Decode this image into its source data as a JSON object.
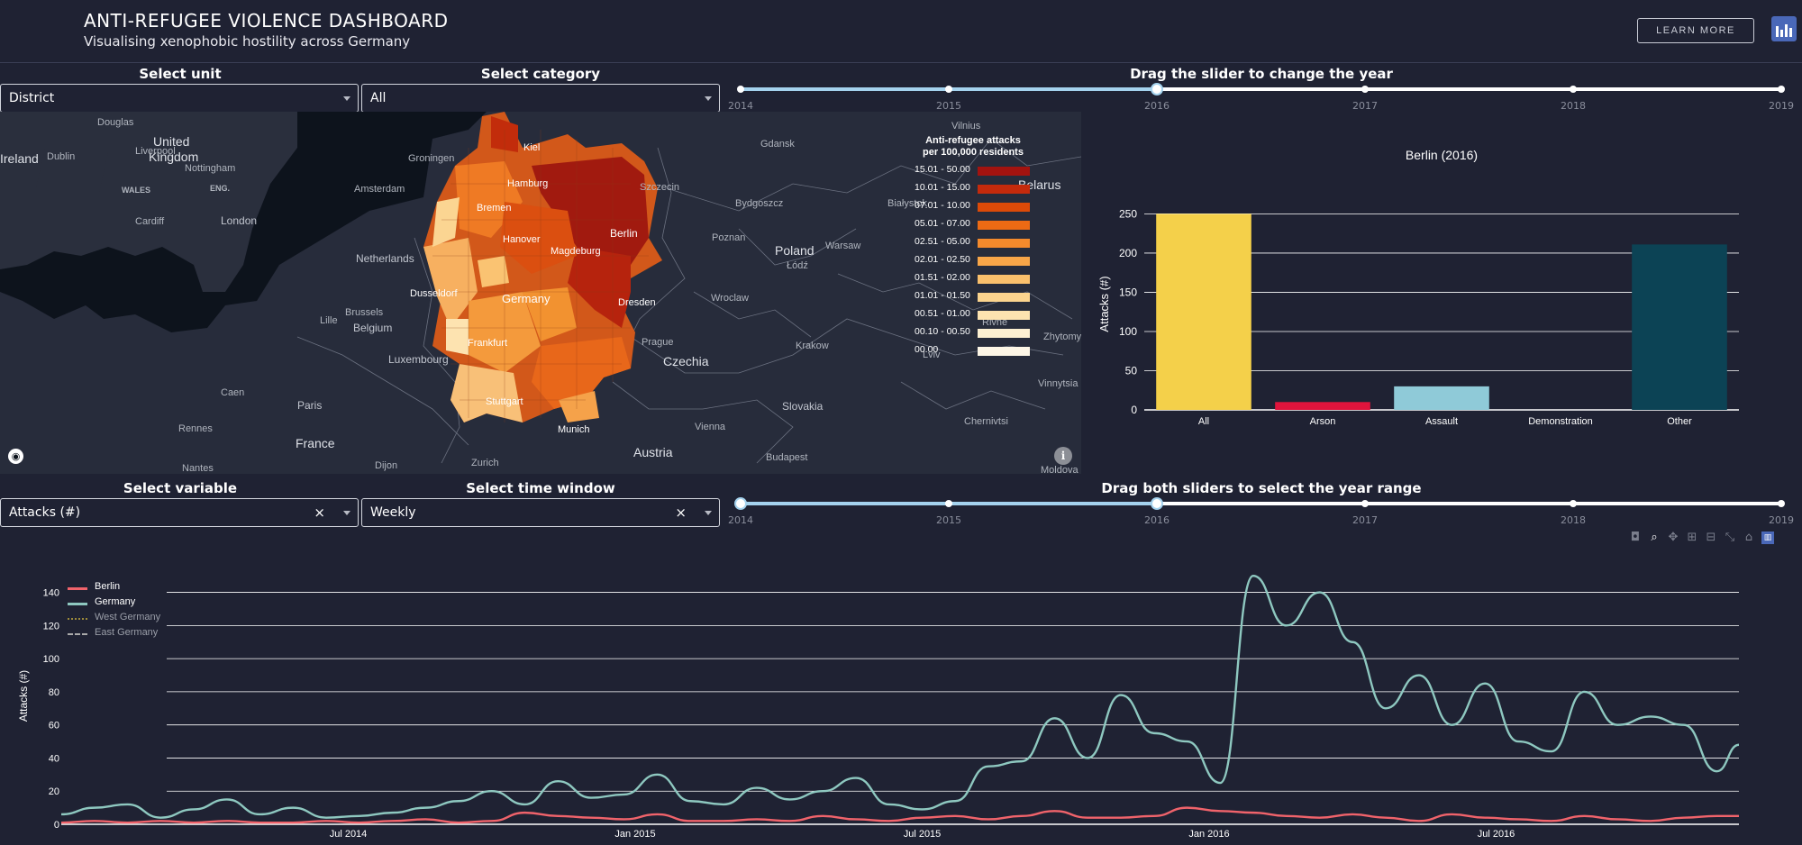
{
  "header": {
    "title": "ANTI-REFUGEE VIOLENCE DASHBOARD",
    "subtitle": "Visualising xenophobic hostility across Germany",
    "learn_more": "LEARN MORE",
    "brand_icon": "bar-chart-logo-icon"
  },
  "controls": {
    "unit_label": "Select unit",
    "unit_value": "District",
    "category_label": "Select category",
    "category_value": "All",
    "year_slider_label": "Drag the slider to change the year",
    "year_slider_ticks": [
      "2014",
      "2015",
      "2016",
      "2017",
      "2018",
      "2019"
    ],
    "year_slider_value": "2016",
    "variable_label": "Select variable",
    "variable_value": "Attacks (#)",
    "window_label": "Select time window",
    "window_value": "Weekly",
    "range_slider_label": "Drag both sliders to select the year range",
    "range_slider_ticks": [
      "2014",
      "2015",
      "2016",
      "2017",
      "2018",
      "2019"
    ],
    "range_slider_value": [
      "2014",
      "2016"
    ],
    "clear_symbol": "×"
  },
  "map": {
    "legend_title_1": "Anti-refugee attacks",
    "legend_title_2": "per 100,000 residents",
    "legend": [
      {
        "label": "15.01 - 50.00",
        "color": "#a3130f"
      },
      {
        "label": "10.01 - 15.00",
        "color": "#c42a0c"
      },
      {
        "label": "07.01 - 10.00",
        "color": "#dc4a08"
      },
      {
        "label": "05.01 - 07.00",
        "color": "#ec6a14"
      },
      {
        "label": "02.51 - 05.00",
        "color": "#f48a2c"
      },
      {
        "label": "02.01 - 02.50",
        "color": "#f8a648"
      },
      {
        "label": "01.51 - 02.00",
        "color": "#fac06c"
      },
      {
        "label": "01.01 - 01.50",
        "color": "#fbd48e"
      },
      {
        "label": "00.51 - 01.00",
        "color": "#fde3b0"
      },
      {
        "label": "00.10 - 00.50",
        "color": "#fdf0d2"
      },
      {
        "label": "00.00",
        "color": "#fdf6e6"
      }
    ],
    "places": {
      "country_large": [
        "United",
        "Kingdom",
        "Ireland",
        "Netherlands",
        "Belgium",
        "Germany",
        "Poland",
        "Czechia",
        "France",
        "Austria",
        "Slovakia",
        "Luxembourg",
        "Belarus"
      ],
      "cities": [
        "Dublin",
        "Douglas",
        "Liverpool",
        "Nottingham",
        "WALES",
        "ENG.",
        "Cardiff",
        "London",
        "Amsterdam",
        "Groningen",
        "Brussels",
        "Lille",
        "Paris",
        "Caen",
        "Rennes",
        "Nantes",
        "Dijon",
        "Zurich",
        "Kiel",
        "Hamburg",
        "Bremen",
        "Hanover",
        "Magdeburg",
        "Berlin",
        "Dresden",
        "Dusseldorf",
        "Frankfurt",
        "Stuttgart",
        "Munich",
        "Prague",
        "Vienna",
        "Budapest",
        "Krakow",
        "Wroclaw",
        "Łódź",
        "Warsaw",
        "Poznan",
        "Bydgoszcz",
        "Gdansk",
        "Szczecin",
        "Białystok",
        "Vilnius",
        "Lviv",
        "Rivne",
        "Zhytomyr",
        "Vinnytsia",
        "Chernivtsi",
        "Moldova"
      ]
    },
    "attribution_icon": "mapbox-logo-icon",
    "info_icon": "info-icon"
  },
  "bar_chart": {
    "title": "Berlin (2016)",
    "ylabel": "Attacks (#)",
    "chart_data": {
      "type": "bar",
      "title": "Berlin (2016)",
      "xlabel": "",
      "ylabel": "Attacks (#)",
      "categories": [
        "All",
        "Arson",
        "Assault",
        "Demonstration",
        "Other"
      ],
      "values": [
        250,
        10,
        30,
        0,
        211
      ],
      "colors": [
        "#f4d04a",
        "#e0143c",
        "#8fcad8",
        "#1f2233",
        "#0c4355"
      ],
      "ylim": [
        0,
        270
      ],
      "yticks": [
        0,
        50,
        100,
        150,
        200,
        250
      ],
      "grid": true
    }
  },
  "line_chart": {
    "ylabel": "Attacks (#)",
    "legend": [
      {
        "name": "Berlin",
        "color": "#f0636b",
        "style": "solid"
      },
      {
        "name": "Germany",
        "color": "#8ec8c0",
        "style": "solid"
      },
      {
        "name": "West Germany",
        "color": "#9c8a3a",
        "style": "dotted"
      },
      {
        "name": "East Germany",
        "color": "#aaaaaa",
        "style": "dashed"
      }
    ],
    "modebar_icons": [
      "camera-icon",
      "zoom-icon",
      "pan-icon",
      "zoom-in-icon",
      "zoom-out-icon",
      "autoscale-icon",
      "home-icon",
      "plotly-logo-icon"
    ],
    "chart_data": {
      "type": "line",
      "xlabel": "",
      "ylabel": "Attacks (#)",
      "xticks": [
        "Jul 2014",
        "Jan 2015",
        "Jul 2015",
        "Jan 2016",
        "Jul 2016"
      ],
      "xlim_weeks": [
        0,
        152
      ],
      "ylim": [
        0,
        155
      ],
      "yticks": [
        0,
        20,
        40,
        60,
        80,
        100,
        120,
        140
      ],
      "grid": true,
      "x_week": [
        0,
        3,
        6,
        9,
        12,
        15,
        18,
        21,
        24,
        27,
        30,
        33,
        36,
        39,
        42,
        45,
        48,
        51,
        54,
        57,
        60,
        63,
        66,
        69,
        72,
        75,
        78,
        81,
        84,
        87,
        90,
        93,
        96,
        99,
        102,
        105,
        108,
        111,
        114,
        117,
        120,
        123,
        126,
        129,
        132,
        135,
        138,
        141,
        144,
        147,
        150,
        152
      ],
      "series": [
        {
          "name": "Berlin",
          "values": [
            1,
            2,
            1,
            2,
            1,
            2,
            1,
            1,
            2,
            1,
            2,
            3,
            1,
            2,
            7,
            5,
            4,
            3,
            6,
            2,
            2,
            3,
            2,
            5,
            3,
            2,
            4,
            5,
            3,
            5,
            8,
            4,
            4,
            5,
            10,
            8,
            7,
            5,
            4,
            6,
            4,
            2,
            6,
            4,
            3,
            2,
            5,
            3,
            2,
            4,
            5,
            5
          ]
        },
        {
          "name": "Germany",
          "values": [
            6,
            10,
            12,
            4,
            9,
            15,
            6,
            10,
            4,
            5,
            7,
            10,
            14,
            20,
            12,
            26,
            16,
            18,
            30,
            14,
            12,
            22,
            15,
            20,
            28,
            12,
            9,
            14,
            35,
            38,
            64,
            40,
            78,
            55,
            50,
            25,
            150,
            120,
            140,
            110,
            70,
            90,
            60,
            85,
            50,
            44,
            80,
            60,
            65,
            60,
            32,
            48
          ]
        }
      ]
    }
  }
}
